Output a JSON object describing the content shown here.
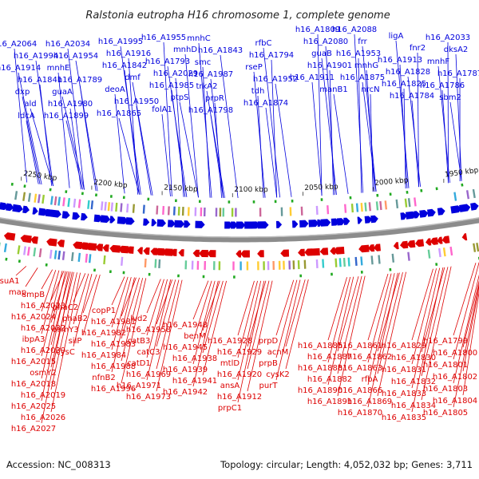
{
  "title": "Ralstonia eutropha H16 chromosome 1, complete genome",
  "accession": "Accession: NC_008313",
  "topology": "Topology: circular; Length: 4,052,032 bp; Genes: 3,711",
  "colors": {
    "forward": "#0000dd",
    "reverse": "#dd0000",
    "backbone": "#8c8c8c",
    "text": "#111111"
  },
  "scale_labels": [
    "2250 kbp",
    "2200 kbp",
    "2150 kbp",
    "2100 kbp",
    "2050 kbp",
    "2000 kbp",
    "1950 kbp"
  ],
  "forward_labels": [
    "h16_A2064",
    "h16_A2034",
    "h16_A1995",
    "h16_A1955",
    "mnhC",
    "rfbC",
    "h16_A1809",
    "h16_A2088",
    "ligA",
    "h16_A2033",
    "h16_A1994",
    "h16_A1954",
    "h16_A1916",
    "mnhD",
    "h16_A1843",
    "h16_A1794",
    "h16_A2080",
    "frr",
    "fnr2",
    "dksA2",
    "h16_A1914",
    "mnhE",
    "h16_A1842",
    "h16_A1793",
    "smc",
    "rseP",
    "guaB",
    "h16_A1953",
    "h16_A1913",
    "mnhF",
    "h16_A1841",
    "h16_A1789",
    "dmf",
    "h16_A2029",
    "h16_A1987",
    "h16_A1952",
    "h16_A1901",
    "mnhG",
    "h16_A1828",
    "h16_A1787",
    "dxp",
    "guaA",
    "deoA",
    "h16_A1985",
    "trkA2",
    "tdh",
    "h16_A1911",
    "h16_A1875",
    "h16_A1825",
    "h16_A1786",
    "ald",
    "h16_A1980",
    "h16_A1950",
    "ptpS",
    "prpR",
    "h16_A1874",
    "manB1",
    "nrcN",
    "h16_A1784",
    "sbm2",
    "ldcA",
    "h16_A1899",
    "h16_A1865",
    "folA1",
    "h16_A1798"
  ],
  "reverse_labels": [
    "rsuA1",
    "map",
    "smpB",
    "h16_A2023",
    "phaC2",
    "h16_A2024",
    "phaB2",
    "osmY3",
    "silP",
    "cysC",
    "h16_A2032",
    "ibpA3",
    "h16_A2039",
    "h16_A2015",
    "osmY2",
    "h16_A2018",
    "h16_A2019",
    "h16_A2025",
    "h16_A2026",
    "h16_A2027",
    "copP1",
    "h16_A1981",
    "h16_A1982",
    "h16_A1983",
    "h16_A1984",
    "h16_A1988",
    "nfnB2",
    "h16_A1996",
    "lvd2",
    "h16_A1958",
    "catB3",
    "catC3",
    "catD1",
    "h16_A1969",
    "h16_A1971",
    "h16_A1973",
    "h16_A1948",
    "benM",
    "h16_A1945",
    "h16_A1938",
    "h16_A1939",
    "h16_A1941",
    "h16_A1942",
    "h16_A1928",
    "h16_A1929",
    "mtlD",
    "h16_A1920",
    "ansA",
    "h16_A1912",
    "prpC1",
    "prpD",
    "acnM",
    "prpB",
    "cysK2",
    "purT",
    "h16_A1885",
    "h16_A1887",
    "h16_A1888",
    "h16_A1882",
    "h16_A1890",
    "h16_A1891",
    "h16_A1861",
    "h16_A1862",
    "h16_A1863",
    "rfbA",
    "h16_A1866",
    "h16_A1869",
    "h16_A1870",
    "h16_A1829",
    "h16_A1830",
    "h16_A1831",
    "h16_A1832",
    "h16_A1833",
    "h16_A1834",
    "h16_A1835",
    "h16_A1799",
    "h16_A1800",
    "h16_A1801",
    "h16_A1802",
    "h16_A1803",
    "h16_A1804",
    "h16_A1805"
  ]
}
